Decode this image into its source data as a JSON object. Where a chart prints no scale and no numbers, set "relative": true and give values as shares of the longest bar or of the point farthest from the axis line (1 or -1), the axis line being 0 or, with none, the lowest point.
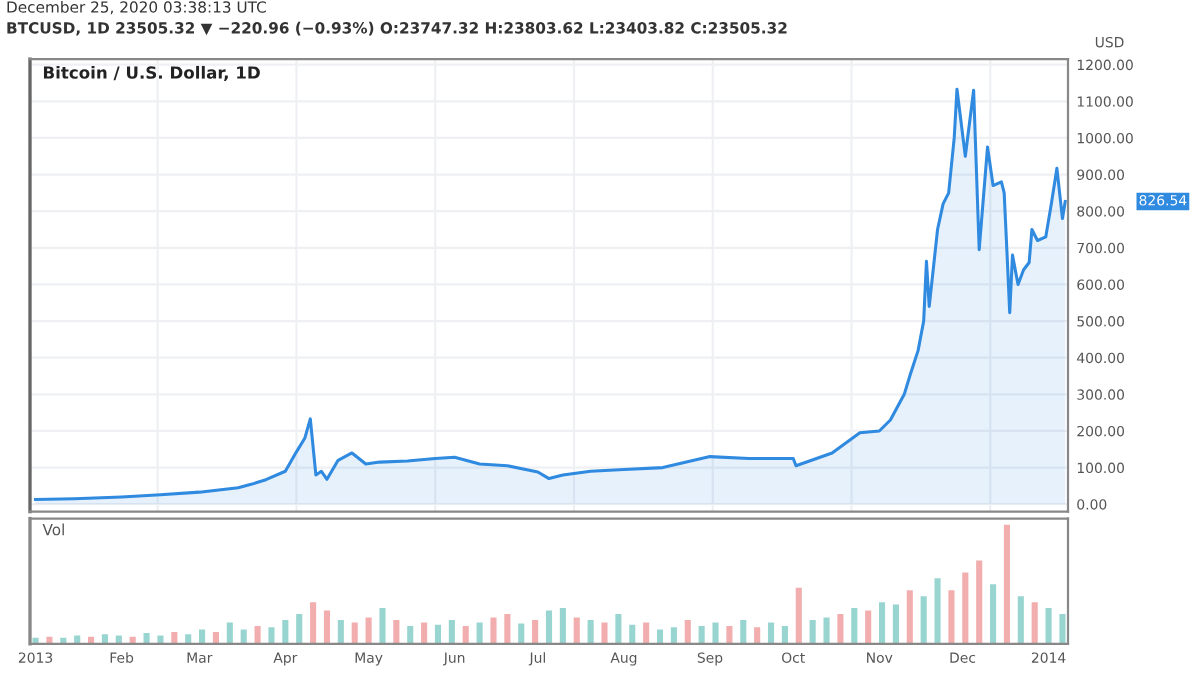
{
  "chart_data": [
    {
      "type": "area",
      "title": "Bitcoin / U.S. Dollar, 1D",
      "subtitle": "BTCUSD, 1D 23505.32 ▼ −220.96 (−0.93%) O:23747.32 H:23803.62 L:23403.82 C:23505.32",
      "annotations": [
        "December 25, 2020 03:38:13 UTC",
        "826.54"
      ],
      "ylabel": "USD",
      "x": [
        "2013-01-01",
        "2013-01-15",
        "2013-02-01",
        "2013-02-15",
        "2013-03-01",
        "2013-03-15",
        "2013-03-20",
        "2013-03-25",
        "2013-04-01",
        "2013-04-05",
        "2013-04-08",
        "2013-04-10",
        "2013-04-12",
        "2013-04-14",
        "2013-04-16",
        "2013-04-20",
        "2013-04-25",
        "2013-04-30",
        "2013-05-05",
        "2013-05-15",
        "2013-05-25",
        "2013-06-01",
        "2013-06-10",
        "2013-06-20",
        "2013-07-01",
        "2013-07-05",
        "2013-07-10",
        "2013-07-20",
        "2013-08-01",
        "2013-08-15",
        "2013-09-01",
        "2013-09-15",
        "2013-10-01",
        "2013-10-02",
        "2013-10-15",
        "2013-10-25",
        "2013-11-01",
        "2013-11-05",
        "2013-11-10",
        "2013-11-12",
        "2013-11-15",
        "2013-11-17",
        "2013-11-18",
        "2013-11-19",
        "2013-11-22",
        "2013-11-24",
        "2013-11-26",
        "2013-11-28",
        "2013-11-29",
        "2013-12-02",
        "2013-12-05",
        "2013-12-07",
        "2013-12-10",
        "2013-12-12",
        "2013-12-15",
        "2013-12-16",
        "2013-12-17",
        "2013-12-18",
        "2013-12-19",
        "2013-12-21",
        "2013-12-23",
        "2013-12-25",
        "2013-12-26",
        "2013-12-28",
        "2013-12-31",
        "2014-01-02",
        "2014-01-04",
        "2014-01-06",
        "2014-01-07"
      ],
      "series": [
        {
          "color": "#2f8ae0",
          "values": [
            13,
            15,
            20,
            26,
            33,
            45,
            55,
            67,
            90,
            143,
            180,
            233,
            80,
            90,
            68,
            120,
            140,
            110,
            115,
            118,
            125,
            128,
            110,
            105,
            88,
            70,
            80,
            90,
            95,
            100,
            130,
            125,
            125,
            105,
            140,
            195,
            200,
            230,
            300,
            350,
            420,
            500,
            663,
            540,
            750,
            820,
            850,
            1000,
            1133,
            950,
            1130,
            695,
            975,
            870,
            880,
            850,
            690,
            523,
            680,
            600,
            640,
            660,
            750,
            720,
            730,
            820,
            917,
            780,
            826.54
          ]
        }
      ],
      "xlim": [
        "2012-12-30",
        "2014-01-08"
      ],
      "ylim": [
        -20,
        1215
      ],
      "tick_labels": "y",
      "yticks": [
        {
          "value": 0,
          "label": "0.00"
        },
        {
          "value": 100,
          "label": "100.00"
        },
        {
          "value": 200,
          "label": "200.00"
        },
        {
          "value": 300,
          "label": "300.00"
        },
        {
          "value": 400,
          "label": "400.00"
        },
        {
          "value": 500,
          "label": "500.00"
        },
        {
          "value": 600,
          "label": "600.00"
        },
        {
          "value": 700,
          "label": "700.00"
        },
        {
          "value": 800,
          "label": "800.00"
        },
        {
          "value": 900,
          "label": "900.00"
        },
        {
          "value": 1000,
          "label": "1000.00"
        },
        {
          "value": 1100,
          "label": "1100.00"
        },
        {
          "value": 1200,
          "label": "1200.00"
        }
      ],
      "grid": true,
      "legend": false
    },
    {
      "type": "bar",
      "title": "Vol",
      "relative": true,
      "tick_labels": "x",
      "xlim": [
        "2012-12-30",
        "2014-01-08"
      ],
      "xticks": [
        {
          "value": "2013-01-01",
          "label": "2013"
        },
        {
          "value": "2013-02-01",
          "label": "Feb"
        },
        {
          "value": "2013-03-01",
          "label": "Mar"
        },
        {
          "value": "2013-04-01",
          "label": "Apr"
        },
        {
          "value": "2013-05-01",
          "label": "May"
        },
        {
          "value": "2013-06-01",
          "label": "Jun"
        },
        {
          "value": "2013-07-01",
          "label": "Jul"
        },
        {
          "value": "2013-08-01",
          "label": "Aug"
        },
        {
          "value": "2013-09-01",
          "label": "Sep"
        },
        {
          "value": "2013-10-01",
          "label": "Oct"
        },
        {
          "value": "2013-11-01",
          "label": "Nov"
        },
        {
          "value": "2013-12-01",
          "label": "Dec"
        },
        {
          "value": "2014-01-01",
          "label": "2014"
        }
      ],
      "x": [
        "2013-01-01",
        "2013-01-06",
        "2013-01-11",
        "2013-01-16",
        "2013-01-21",
        "2013-01-26",
        "2013-01-31",
        "2013-02-05",
        "2013-02-10",
        "2013-02-15",
        "2013-02-20",
        "2013-02-25",
        "2013-03-02",
        "2013-03-07",
        "2013-03-12",
        "2013-03-17",
        "2013-03-22",
        "2013-03-27",
        "2013-04-01",
        "2013-04-06",
        "2013-04-11",
        "2013-04-16",
        "2013-04-21",
        "2013-04-26",
        "2013-05-01",
        "2013-05-06",
        "2013-05-11",
        "2013-05-16",
        "2013-05-21",
        "2013-05-26",
        "2013-05-31",
        "2013-06-05",
        "2013-06-10",
        "2013-06-15",
        "2013-06-20",
        "2013-06-25",
        "2013-06-30",
        "2013-07-05",
        "2013-07-10",
        "2013-07-15",
        "2013-07-20",
        "2013-07-25",
        "2013-07-30",
        "2013-08-04",
        "2013-08-09",
        "2013-08-14",
        "2013-08-19",
        "2013-08-24",
        "2013-08-29",
        "2013-09-03",
        "2013-09-08",
        "2013-09-13",
        "2013-09-18",
        "2013-09-23",
        "2013-09-28",
        "2013-10-03",
        "2013-10-08",
        "2013-10-13",
        "2013-10-18",
        "2013-10-23",
        "2013-10-28",
        "2013-11-02",
        "2013-11-07",
        "2013-11-12",
        "2013-11-17",
        "2013-11-22",
        "2013-11-27",
        "2013-12-02",
        "2013-12-07",
        "2013-12-12",
        "2013-12-17",
        "2013-12-22",
        "2013-12-27",
        "2014-01-01",
        "2014-01-06"
      ],
      "values": [
        0.05,
        0.06,
        0.05,
        0.07,
        0.06,
        0.08,
        0.07,
        0.06,
        0.09,
        0.07,
        0.1,
        0.08,
        0.12,
        0.1,
        0.18,
        0.12,
        0.15,
        0.14,
        0.2,
        0.25,
        0.35,
        0.28,
        0.2,
        0.18,
        0.22,
        0.3,
        0.2,
        0.15,
        0.18,
        0.16,
        0.2,
        0.15,
        0.18,
        0.22,
        0.25,
        0.17,
        0.2,
        0.28,
        0.3,
        0.22,
        0.2,
        0.18,
        0.25,
        0.16,
        0.18,
        0.12,
        0.14,
        0.2,
        0.15,
        0.18,
        0.15,
        0.2,
        0.14,
        0.18,
        0.15,
        0.47,
        0.2,
        0.22,
        0.25,
        0.3,
        0.28,
        0.35,
        0.33,
        0.45,
        0.4,
        0.55,
        0.45,
        0.6,
        0.7,
        0.5,
        1.0,
        0.4,
        0.35,
        0.3,
        0.25
      ],
      "colors": [
        "#80cbc4",
        "#ef9a9a",
        "#80cbc4",
        "#80cbc4",
        "#ef9a9a",
        "#80cbc4",
        "#80cbc4",
        "#ef9a9a",
        "#80cbc4",
        "#80cbc4",
        "#ef9a9a",
        "#80cbc4",
        "#80cbc4",
        "#ef9a9a",
        "#80cbc4",
        "#80cbc4",
        "#ef9a9a",
        "#80cbc4",
        "#80cbc4",
        "#80cbc4",
        "#ef9a9a",
        "#ef9a9a",
        "#80cbc4",
        "#ef9a9a",
        "#ef9a9a",
        "#80cbc4",
        "#ef9a9a",
        "#80cbc4",
        "#ef9a9a",
        "#80cbc4",
        "#80cbc4",
        "#ef9a9a",
        "#80cbc4",
        "#ef9a9a",
        "#ef9a9a",
        "#80cbc4",
        "#ef9a9a",
        "#80cbc4",
        "#80cbc4",
        "#ef9a9a",
        "#80cbc4",
        "#ef9a9a",
        "#80cbc4",
        "#80cbc4",
        "#ef9a9a",
        "#80cbc4",
        "#80cbc4",
        "#ef9a9a",
        "#80cbc4",
        "#80cbc4",
        "#ef9a9a",
        "#80cbc4",
        "#ef9a9a",
        "#80cbc4",
        "#80cbc4",
        "#ef9a9a",
        "#80cbc4",
        "#80cbc4",
        "#ef9a9a",
        "#80cbc4",
        "#ef9a9a",
        "#80cbc4",
        "#80cbc4",
        "#ef9a9a",
        "#80cbc4",
        "#80cbc4",
        "#ef9a9a",
        "#ef9a9a",
        "#ef9a9a",
        "#80cbc4",
        "#ef9a9a",
        "#80cbc4",
        "#ef9a9a",
        "#80cbc4",
        "#80cbc4"
      ]
    }
  ]
}
